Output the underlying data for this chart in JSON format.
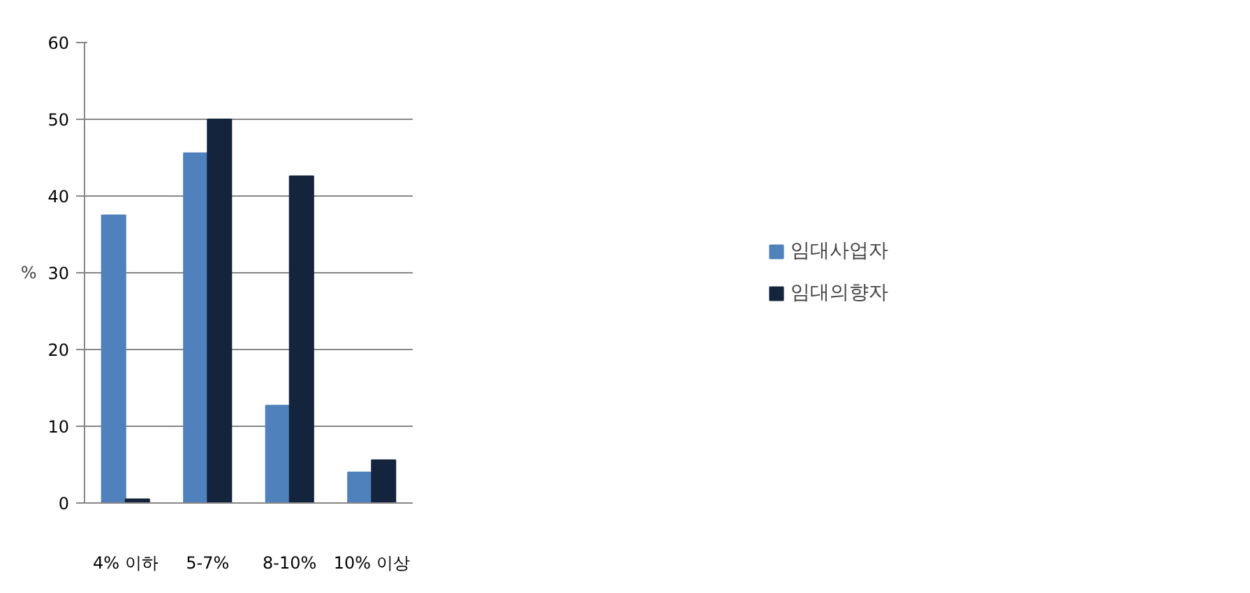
{
  "chart_data": {
    "type": "bar",
    "ylabel": "%",
    "categories": [
      "4% 이하",
      "5-7%",
      "8-10%",
      "10% 이상"
    ],
    "series": [
      {
        "name": "임대사업자",
        "color": "#4f81bd",
        "values": [
          37.5,
          45.6,
          12.7,
          4.0
        ]
      },
      {
        "name": "임대의향자",
        "color": "#14243d",
        "values": [
          0.5,
          50,
          42.6,
          5.6
        ]
      }
    ],
    "ylim": [
      0,
      60
    ],
    "yticks": [
      0,
      10,
      20,
      30,
      40,
      50,
      60
    ],
    "grid": "y",
    "legend": "right"
  }
}
